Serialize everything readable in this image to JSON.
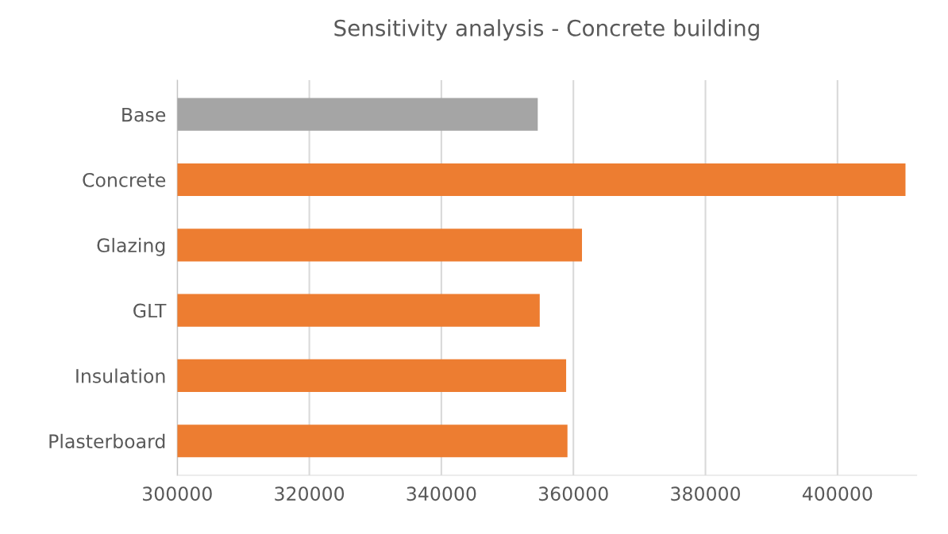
{
  "chart_data": {
    "type": "bar",
    "orientation": "horizontal",
    "title": "Sensitivity analysis - Concrete building",
    "categories": [
      "Base",
      "Concrete",
      "Glazing",
      "GLT",
      "Insulation",
      "Plasterboard"
    ],
    "values": [
      354600,
      410300,
      361300,
      354900,
      358900,
      359100
    ],
    "colors": [
      "#a5a5a5",
      "#ed7d31",
      "#ed7d31",
      "#ed7d31",
      "#ed7d31",
      "#ed7d31"
    ],
    "xlim": [
      300000,
      412000
    ],
    "xticks": [
      300000,
      320000,
      340000,
      360000,
      380000,
      400000
    ],
    "grid": "x",
    "legend": false
  }
}
